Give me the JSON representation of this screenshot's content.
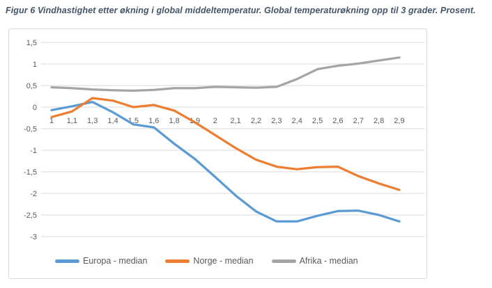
{
  "caption": "Figur 6 Vindhastighet etter økning i global middeltemperatur. Global temperaturøkning opp til 3 grader. Prosent.",
  "chart_data": {
    "type": "line",
    "categories": [
      "1",
      "1,1",
      "1,3",
      "1,4",
      "1,5",
      "1,6",
      "1,8",
      "1,9",
      "2",
      "2,1",
      "2,2",
      "2,3",
      "2,4",
      "2,5",
      "2,6",
      "2,7",
      "2,8",
      "2,9"
    ],
    "series": [
      {
        "name": "Europa - median",
        "color": "#5B9BD5",
        "values": [
          -0.07,
          0.02,
          0.12,
          -0.12,
          -0.4,
          -0.47,
          -0.85,
          -1.2,
          -1.62,
          -2.05,
          -2.42,
          -2.65,
          -2.65,
          -2.52,
          -2.41,
          -2.4,
          -2.5,
          -2.65
        ]
      },
      {
        "name": "Norge - median",
        "color": "#ED7D31",
        "values": [
          -0.23,
          -0.1,
          0.21,
          0.15,
          0.0,
          0.05,
          -0.08,
          -0.35,
          -0.65,
          -0.95,
          -1.22,
          -1.38,
          -1.44,
          -1.39,
          -1.38,
          -1.6,
          -1.77,
          -1.92
        ]
      },
      {
        "name": "Afrika - median",
        "color": "#A5A5A5",
        "values": [
          0.46,
          0.44,
          0.41,
          0.39,
          0.38,
          0.4,
          0.44,
          0.44,
          0.47,
          0.46,
          0.45,
          0.47,
          0.65,
          0.88,
          0.96,
          1.01,
          1.08,
          1.15
        ]
      }
    ],
    "y_tick_labels": [
      "1,5",
      "1",
      "0,5",
      "0",
      "-0,5",
      "-1",
      "-1,5",
      "-2",
      "-2,5",
      "-3"
    ],
    "y_tick_values": [
      1.5,
      1.0,
      0.5,
      0.0,
      -0.5,
      -1.0,
      -1.5,
      -2.0,
      -2.5,
      -3.0
    ],
    "ylim": [
      -3,
      1.5
    ],
    "grid": true,
    "legend_position": "bottom",
    "style": {
      "grid_color": "#D9D9D9",
      "axis_text_color": "#595959",
      "caption_color": "#44546A",
      "chart_border_color": "#D9D9D9",
      "line_width": 3.25
    }
  }
}
